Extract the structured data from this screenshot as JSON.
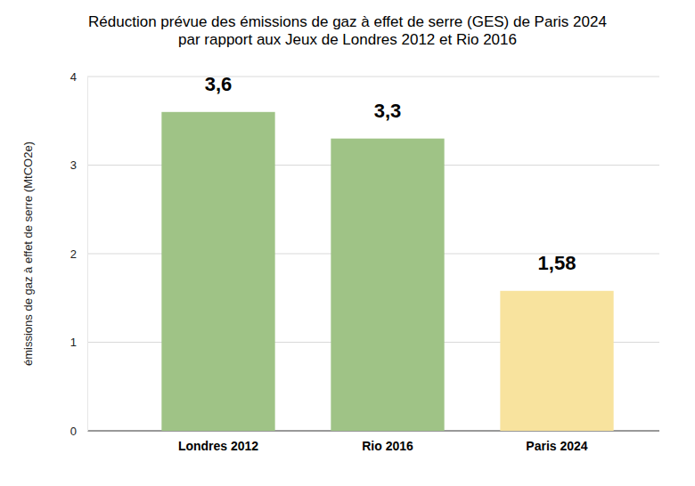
{
  "chart_data": {
    "type": "bar",
    "title": [
      "Réduction prévue des émissions de gaz à effet de serre (GES) de Paris 2024",
      "par rapport aux Jeux de Londres 2012 et Rio 2016"
    ],
    "y_label": "émissions de gaz à effet de serre (MtCO2e)",
    "categories": [
      "Londres 2012",
      "Rio 2016",
      "Paris 2024"
    ],
    "values": [
      3.6,
      3.3,
      1.58
    ],
    "value_labels": [
      "3,6",
      "3,3",
      "1,58"
    ],
    "colors": [
      "#9fc386",
      "#9fc386",
      "#f8e39e"
    ],
    "ylim": [
      0,
      4
    ],
    "yticks": [
      0,
      1,
      2,
      3,
      4
    ],
    "grid": true,
    "data_labels": true
  }
}
